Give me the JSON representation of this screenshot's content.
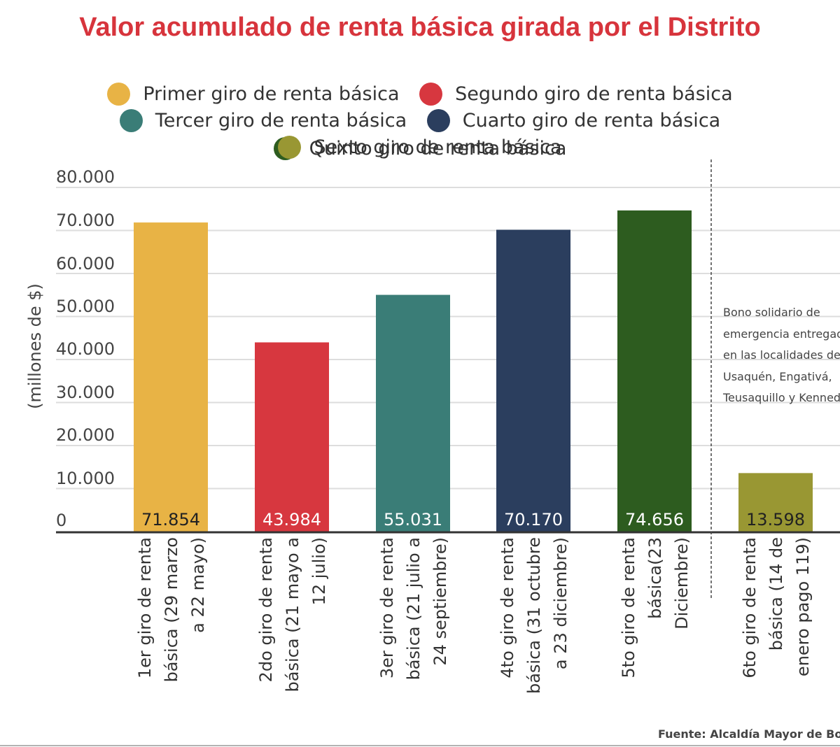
{
  "chart_data": {
    "type": "bar",
    "title": "Valor acumulado de renta básica girada por el Distrito",
    "ylabel": "(millones de $)",
    "ylim": [
      0,
      80000
    ],
    "yticks": [
      "0",
      "10.000",
      "20.000",
      "30.000",
      "40.000",
      "50.000",
      "60.000",
      "70.000",
      "80.000"
    ],
    "grid": true,
    "legend_position": "top",
    "categories": [
      [
        "1er giro de renta",
        "básica (29 marzo",
        "a 22 mayo)"
      ],
      [
        "2do giro de renta",
        "básica (21 mayo a",
        "12 julio)"
      ],
      [
        "3er giro de renta",
        "básica (21 julio a",
        "24 septiembre)"
      ],
      [
        "4to giro de renta",
        "básica (31 octubre",
        "a 23 diciembre)"
      ],
      [
        "5to giro de renta",
        "básica(23",
        "Diciembre)"
      ],
      [
        "6to giro de renta",
        "básica (14 de",
        "enero pago 119)"
      ]
    ],
    "values": [
      71854,
      43984,
      55031,
      70170,
      74656,
      13598
    ],
    "value_labels": [
      "71.854",
      "43.984",
      "55.031",
      "70.170",
      "74.656",
      "13.598"
    ],
    "colors": [
      "#e8b345",
      "#d7373f",
      "#3a7d77",
      "#2b3e5e",
      "#2d5c1f",
      "#999733"
    ],
    "label_colors": [
      "#222222",
      "#ffffff",
      "#ffffff",
      "#ffffff",
      "#ffffff",
      "#222222"
    ],
    "series": [
      {
        "name": "Primer giro de renta básica",
        "color": "#e8b345"
      },
      {
        "name": "Segundo giro de renta básica",
        "color": "#d7373f"
      },
      {
        "name": "Tercer giro de renta básica",
        "color": "#3a7d77"
      },
      {
        "name": "Cuarto giro de renta básica",
        "color": "#2b3e5e"
      },
      {
        "name": "Quinto giro de renta básica",
        "color": "#2d5c1f"
      },
      {
        "name": "Sexto giro de renta básica",
        "color": "#999733"
      }
    ],
    "annotation": [
      "Bono solidario de",
      "emergencia entregado",
      "en las localidades de",
      "Usaquén, Engativá,",
      "Teusaquillo y Kennedy"
    ],
    "source": "Fuente: Alcaldía Mayor de  Bogotá"
  }
}
